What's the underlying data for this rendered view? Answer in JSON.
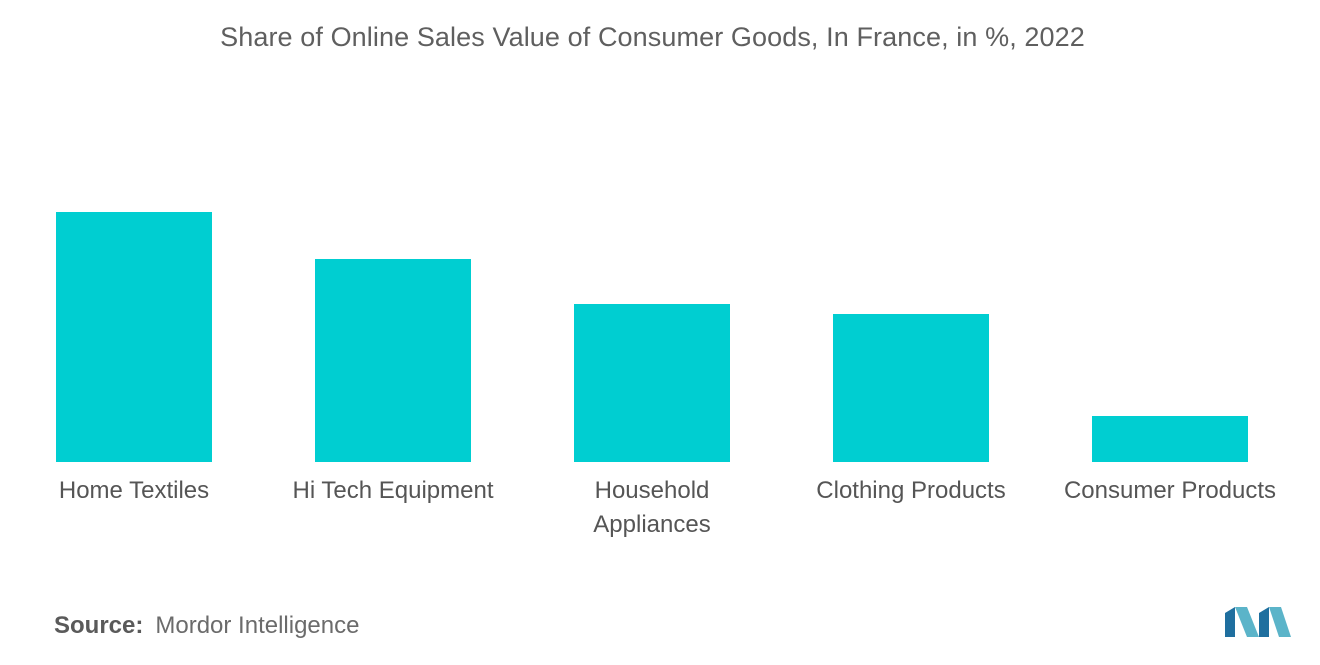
{
  "chart_data": {
    "type": "bar",
    "title": "Share of Online Sales Value of Consumer Goods, In France, in %, 2022",
    "categories": [
      [
        "Home Textiles"
      ],
      [
        "Hi Tech Equipment"
      ],
      [
        "Household",
        "Appliances"
      ],
      [
        "Clothing Products"
      ],
      [
        "Consumer Products"
      ]
    ],
    "values": [
      25,
      20.3,
      15.8,
      14.8,
      4.6
    ],
    "xlabel": "",
    "ylabel": "",
    "ylim": [
      0,
      30
    ],
    "grid": false,
    "legend": "none",
    "bar_color": "#00ced1"
  },
  "source": {
    "label": "Source:",
    "text": "Mordor Intelligence"
  },
  "logo": {
    "icon": "mordor-intelligence-logo",
    "colors": [
      "#5bb4c9",
      "#1f6f9f"
    ]
  }
}
